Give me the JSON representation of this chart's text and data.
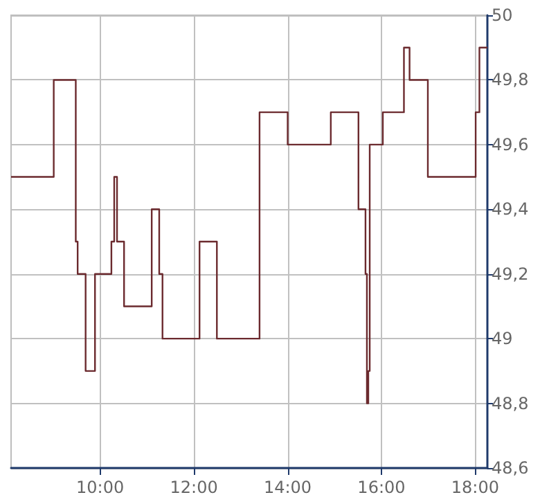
{
  "chart_data": {
    "type": "step",
    "x": [
      8.1,
      9.01,
      9.48,
      9.52,
      9.69,
      9.89,
      10.24,
      10.3,
      10.36,
      10.51,
      11.1,
      11.26,
      11.33,
      12.12,
      12.49,
      13.4,
      14.0,
      14.92,
      15.51,
      15.66,
      15.69,
      15.72,
      15.75,
      16.03,
      16.48,
      16.6,
      16.99,
      18.01,
      18.09,
      18.26
    ],
    "series": [
      {
        "color": "#6b2a2e",
        "values": [
          49.5,
          49.8,
          49.3,
          49.2,
          48.9,
          49.2,
          49.3,
          49.5,
          49.3,
          49.1,
          49.4,
          49.2,
          49.0,
          49.3,
          49.0,
          49.7,
          49.6,
          49.7,
          49.4,
          49.2,
          48.8,
          48.9,
          49.6,
          49.7,
          49.9,
          49.8,
          49.5,
          49.7,
          49.9,
          49.9
        ]
      }
    ],
    "xlim": [
      8.1,
      18.26
    ],
    "xticks": [
      {
        "value": 10,
        "label": "10:00"
      },
      {
        "value": 12,
        "label": "12:00"
      },
      {
        "value": 14,
        "label": "14:00"
      },
      {
        "value": 16,
        "label": "16:00"
      },
      {
        "value": 18,
        "label": "18:00"
      }
    ],
    "ylim": [
      48.6,
      50
    ],
    "yticks": [
      {
        "value": 48.6,
        "label": "48,6"
      },
      {
        "value": 48.8,
        "label": "48,8"
      },
      49,
      {
        "value": 49.2,
        "label": "49,2"
      },
      {
        "value": 49.4,
        "label": "49,4"
      },
      {
        "value": 49.6,
        "label": "49,6"
      },
      {
        "value": 49.8,
        "label": "49,8"
      },
      50
    ],
    "grid": true,
    "marker": "none",
    "line_style": "solid"
  }
}
